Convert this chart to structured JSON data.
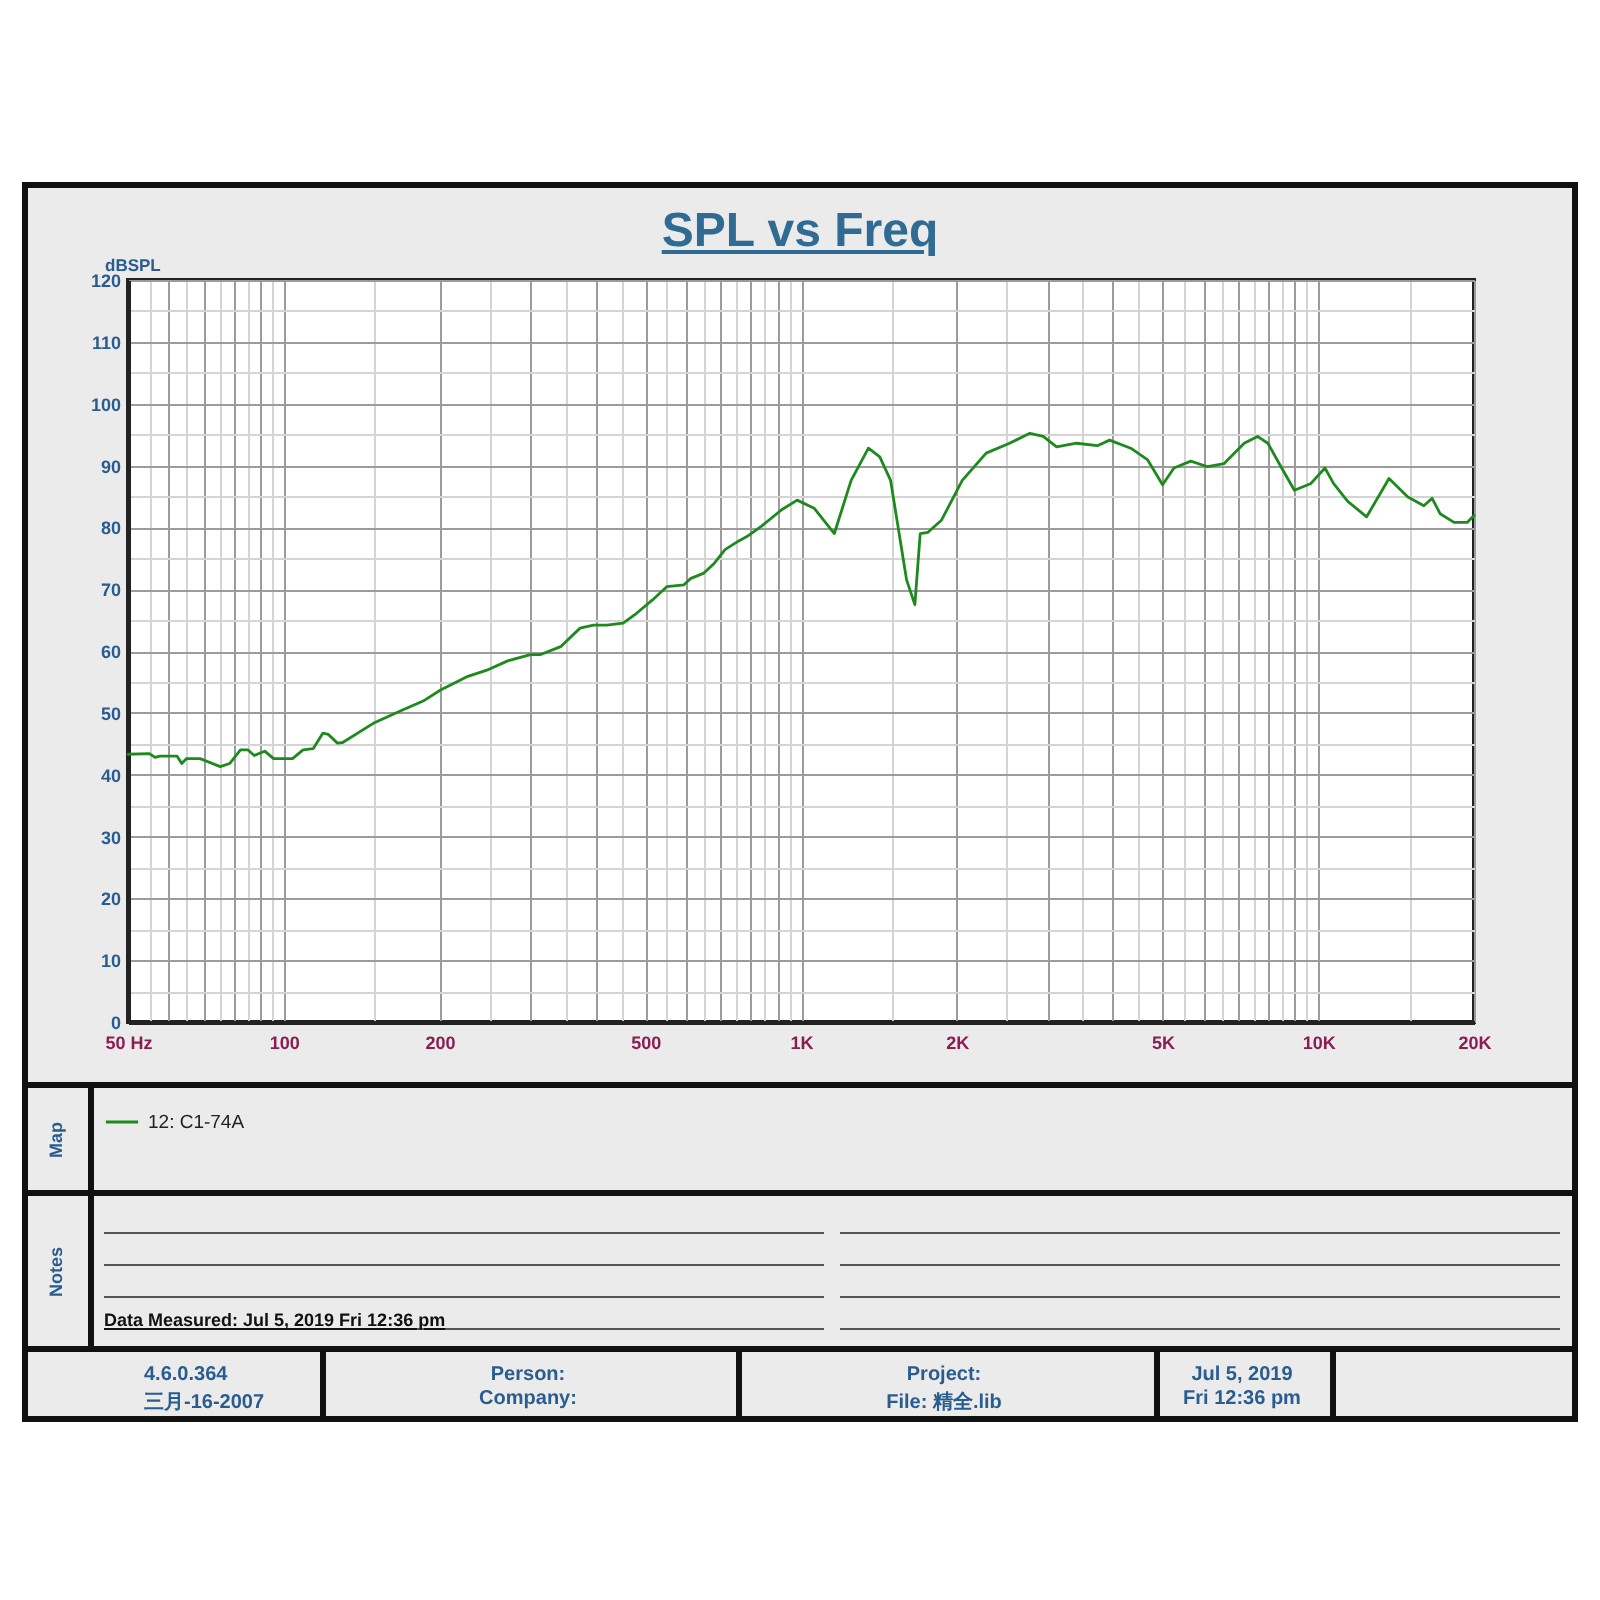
{
  "chart_data": {
    "type": "line",
    "title": "SPL vs Freq",
    "ylabel": "dBSPL",
    "legend_title": "Map",
    "legend": "bottom",
    "log": "x",
    "grid": true,
    "xlim": [
      50,
      20000
    ],
    "ylim": [
      0,
      120
    ],
    "xticks": [
      {
        "value": 50,
        "label": "50 Hz"
      },
      {
        "value": 55,
        "label": null
      },
      {
        "value": 60,
        "label": null
      },
      {
        "value": 65,
        "label": null
      },
      {
        "value": 70,
        "label": null
      },
      {
        "value": 75,
        "label": null
      },
      {
        "value": 80,
        "label": null
      },
      {
        "value": 85,
        "label": null
      },
      {
        "value": 90,
        "label": null
      },
      {
        "value": 95,
        "label": null
      },
      100,
      {
        "value": 150,
        "label": null
      },
      200,
      {
        "value": 250,
        "label": null
      },
      {
        "value": 300,
        "label": null
      },
      {
        "value": 350,
        "label": null
      },
      {
        "value": 400,
        "label": null
      },
      {
        "value": 450,
        "label": null
      },
      500,
      {
        "value": 550,
        "label": null
      },
      {
        "value": 600,
        "label": null
      },
      {
        "value": 650,
        "label": null
      },
      {
        "value": 700,
        "label": null
      },
      {
        "value": 750,
        "label": null
      },
      {
        "value": 800,
        "label": null
      },
      {
        "value": 850,
        "label": null
      },
      {
        "value": 900,
        "label": null
      },
      {
        "value": 950,
        "label": null
      },
      {
        "value": 1000,
        "label": "1K"
      },
      {
        "value": 1500,
        "label": null
      },
      {
        "value": 2000,
        "label": "2K"
      },
      {
        "value": 2500,
        "label": null
      },
      {
        "value": 3000,
        "label": null
      },
      {
        "value": 3500,
        "label": null
      },
      {
        "value": 4000,
        "label": null
      },
      {
        "value": 4500,
        "label": null
      },
      {
        "value": 5000,
        "label": "5K"
      },
      {
        "value": 5500,
        "label": null
      },
      {
        "value": 6000,
        "label": null
      },
      {
        "value": 6500,
        "label": null
      },
      {
        "value": 7000,
        "label": null
      },
      {
        "value": 7500,
        "label": null
      },
      {
        "value": 8000,
        "label": null
      },
      {
        "value": 8500,
        "label": null
      },
      {
        "value": 9000,
        "label": null
      },
      {
        "value": 9500,
        "label": null
      },
      {
        "value": 10000,
        "label": "10K"
      },
      {
        "value": 15000,
        "label": null
      },
      {
        "value": 20000,
        "label": "20K"
      }
    ],
    "yticks": [
      0,
      {
        "value": 5,
        "label": null
      },
      10,
      {
        "value": 15,
        "label": null
      },
      20,
      {
        "value": 25,
        "label": null
      },
      30,
      {
        "value": 35,
        "label": null
      },
      40,
      {
        "value": 45,
        "label": null
      },
      50,
      {
        "value": 55,
        "label": null
      },
      60,
      {
        "value": 65,
        "label": null
      },
      70,
      {
        "value": 75,
        "label": null
      },
      80,
      {
        "value": 85,
        "label": null
      },
      90,
      {
        "value": 95,
        "label": null
      },
      100,
      {
        "value": 105,
        "label": null
      },
      110,
      {
        "value": 115,
        "label": null
      },
      120
    ],
    "series": [
      {
        "name": "12: C1-74A",
        "color": "#1e8a1e",
        "x": [
          50,
          55,
          56.4,
          57.6,
          62.2,
          63.5,
          64.9,
          68.9,
          75.4,
          78.6,
          82.5,
          85.3,
          87.7,
          91.9,
          95.6,
          104,
          109,
          114,
          119,
          122,
          127,
          130,
          149,
          168,
          186,
          201,
          227,
          247,
          271,
          300,
          313,
          343,
          374,
          397,
          421,
          453,
          481,
          517,
          550,
          594,
          611,
          649,
          680,
          713,
          758,
          786,
          839,
          916,
          983,
          1060,
          1160,
          1250,
          1350,
          1420,
          1490,
          1600,
          1660,
          1700,
          1760,
          1870,
          2050,
          2280,
          2530,
          2770,
          2940,
          3120,
          3410,
          3740,
          3950,
          4340,
          4680,
          5000,
          5260,
          5670,
          6110,
          6570,
          7190,
          7630,
          7990,
          8470,
          8990,
          9680,
          10300,
          10700,
          11400,
          12400,
          13700,
          14900,
          16000,
          16600,
          17200,
          18300,
          19400,
          20000
        ],
        "values": [
          43.3,
          43.4,
          42.8,
          43.0,
          43.0,
          41.8,
          42.6,
          42.6,
          41.3,
          41.8,
          44.0,
          44.0,
          43.1,
          43.8,
          42.6,
          42.6,
          44.0,
          44.2,
          46.7,
          46.5,
          45.1,
          45.2,
          48.3,
          50.3,
          51.9,
          53.7,
          55.9,
          56.9,
          58.4,
          59.4,
          59.4,
          60.7,
          63.7,
          64.2,
          64.2,
          64.5,
          66.1,
          68.3,
          70.4,
          70.7,
          71.7,
          72.6,
          74.2,
          76.4,
          77.8,
          78.5,
          80.2,
          82.8,
          84.4,
          83.1,
          79.0,
          87.6,
          92.8,
          91.4,
          87.6,
          71.5,
          67.5,
          79.0,
          79.2,
          81.2,
          87.6,
          92.0,
          93.6,
          95.2,
          94.7,
          93.0,
          93.6,
          93.2,
          94.1,
          92.8,
          90.9,
          86.9,
          89.6,
          90.7,
          89.8,
          90.3,
          93.6,
          94.7,
          93.6,
          89.8,
          86.0,
          87.1,
          89.6,
          87.1,
          84.2,
          81.7,
          87.9,
          84.9,
          83.5,
          84.7,
          82.2,
          80.8,
          80.8,
          81.9
        ]
      }
    ],
    "annotations": [
      "Notes",
      "Data Measured: Jul 5, 2019 Fri 12:36 pm",
      "4.6.0.364",
      "三月-16-2007",
      "Person:",
      "Company:",
      "Project:",
      "File: 精全.lib",
      "Jul 5, 2019",
      "Fri 12:36 pm"
    ]
  }
}
